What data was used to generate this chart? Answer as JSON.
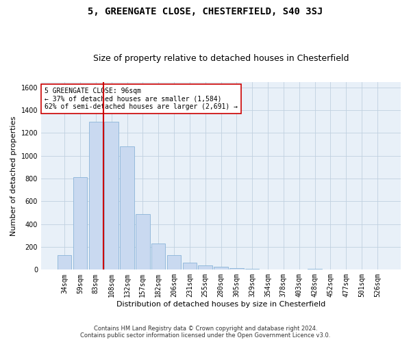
{
  "title": "5, GREENGATE CLOSE, CHESTERFIELD, S40 3SJ",
  "subtitle": "Size of property relative to detached houses in Chesterfield",
  "xlabel": "Distribution of detached houses by size in Chesterfield",
  "ylabel": "Number of detached properties",
  "categories": [
    "34sqm",
    "59sqm",
    "83sqm",
    "108sqm",
    "132sqm",
    "157sqm",
    "182sqm",
    "206sqm",
    "231sqm",
    "255sqm",
    "280sqm",
    "305sqm",
    "329sqm",
    "354sqm",
    "378sqm",
    "403sqm",
    "428sqm",
    "452sqm",
    "477sqm",
    "501sqm",
    "526sqm"
  ],
  "values": [
    130,
    810,
    1300,
    1300,
    1080,
    490,
    230,
    130,
    65,
    40,
    25,
    15,
    10,
    5,
    5,
    5,
    10,
    3,
    2,
    2,
    2
  ],
  "bar_color": "#c9d9f0",
  "bar_edge_color": "#8ab4d8",
  "vline_color": "#cc0000",
  "annotation_text": "5 GREENGATE CLOSE: 96sqm\n← 37% of detached houses are smaller (1,584)\n62% of semi-detached houses are larger (2,691) →",
  "annotation_box_color": "#ffffff",
  "annotation_box_edge": "#cc0000",
  "ylim": [
    0,
    1650
  ],
  "yticks": [
    0,
    200,
    400,
    600,
    800,
    1000,
    1200,
    1400,
    1600
  ],
  "footer_line1": "Contains HM Land Registry data © Crown copyright and database right 2024.",
  "footer_line2": "Contains public sector information licensed under the Open Government Licence v3.0.",
  "bg_color": "#ffffff",
  "plot_bg_color": "#e8f0f8",
  "grid_color": "#c0d0e0",
  "title_fontsize": 10,
  "subtitle_fontsize": 9,
  "axis_label_fontsize": 8,
  "tick_fontsize": 7,
  "annotation_fontsize": 7,
  "footer_fontsize": 6
}
